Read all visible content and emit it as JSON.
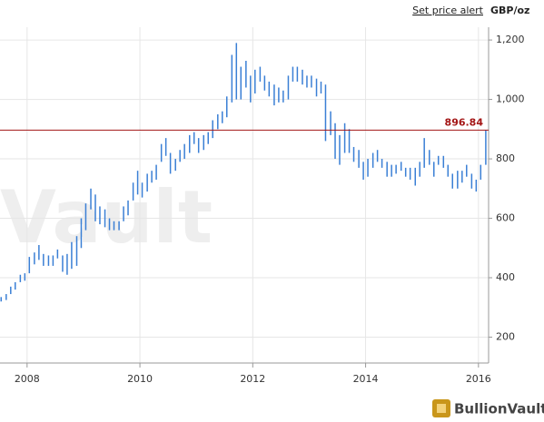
{
  "chart_data": {
    "type": "ohlc",
    "header": {
      "link": "Set price alert",
      "unit": "GBP/oz"
    },
    "watermark": "Vault",
    "logo": "BullionVault",
    "color": "#3a7fd5",
    "x": [
      2007.54,
      2007.63,
      2007.71,
      2007.79,
      2007.88,
      2007.96,
      2008.04,
      2008.13,
      2008.21,
      2008.29,
      2008.38,
      2008.46,
      2008.54,
      2008.63,
      2008.71,
      2008.79,
      2008.88,
      2008.96,
      2009.04,
      2009.13,
      2009.21,
      2009.29,
      2009.38,
      2009.46,
      2009.54,
      2009.63,
      2009.71,
      2009.79,
      2009.88,
      2009.96,
      2010.04,
      2010.13,
      2010.21,
      2010.29,
      2010.38,
      2010.46,
      2010.54,
      2010.63,
      2010.71,
      2010.79,
      2010.88,
      2010.96,
      2011.04,
      2011.13,
      2011.21,
      2011.29,
      2011.38,
      2011.46,
      2011.54,
      2011.63,
      2011.71,
      2011.79,
      2011.88,
      2011.96,
      2012.04,
      2012.13,
      2012.21,
      2012.29,
      2012.38,
      2012.46,
      2012.54,
      2012.63,
      2012.71,
      2012.79,
      2012.88,
      2012.96,
      2013.04,
      2013.13,
      2013.21,
      2013.29,
      2013.38,
      2013.46,
      2013.54,
      2013.63,
      2013.71,
      2013.79,
      2013.88,
      2013.96,
      2014.04,
      2014.13,
      2014.21,
      2014.29,
      2014.38,
      2014.46,
      2014.54,
      2014.63,
      2014.71,
      2014.79,
      2014.88,
      2014.96,
      2015.04,
      2015.13,
      2015.21,
      2015.29,
      2015.38,
      2015.46,
      2015.54,
      2015.63,
      2015.71,
      2015.79,
      2015.88,
      2015.96,
      2016.04,
      2016.13
    ],
    "high": [
      335,
      345,
      370,
      385,
      410,
      415,
      470,
      485,
      510,
      480,
      475,
      475,
      495,
      475,
      480,
      520,
      540,
      600,
      650,
      700,
      680,
      640,
      630,
      600,
      590,
      590,
      640,
      660,
      720,
      760,
      720,
      750,
      760,
      780,
      850,
      870,
      820,
      800,
      830,
      850,
      880,
      890,
      870,
      880,
      890,
      930,
      950,
      960,
      1010,
      1150,
      1190,
      1110,
      1130,
      1080,
      1100,
      1110,
      1080,
      1060,
      1050,
      1040,
      1030,
      1080,
      1110,
      1110,
      1100,
      1080,
      1080,
      1070,
      1060,
      1050,
      960,
      920,
      880,
      920,
      900,
      840,
      830,
      790,
      800,
      820,
      830,
      800,
      790,
      780,
      780,
      790,
      770,
      770,
      770,
      790,
      870,
      830,
      790,
      810,
      810,
      780,
      750,
      760,
      760,
      780,
      750,
      730,
      780,
      897
    ],
    "low": [
      320,
      325,
      345,
      360,
      385,
      390,
      415,
      445,
      460,
      440,
      440,
      440,
      465,
      420,
      410,
      430,
      440,
      500,
      560,
      630,
      590,
      580,
      570,
      560,
      560,
      560,
      590,
      610,
      660,
      680,
      670,
      690,
      720,
      730,
      790,
      810,
      750,
      760,
      790,
      800,
      820,
      850,
      820,
      830,
      850,
      870,
      900,
      920,
      940,
      990,
      1000,
      1000,
      1040,
      990,
      1020,
      1060,
      1030,
      1010,
      980,
      990,
      990,
      1000,
      1060,
      1060,
      1050,
      1040,
      1040,
      1010,
      1020,
      860,
      880,
      800,
      780,
      820,
      820,
      790,
      770,
      730,
      740,
      770,
      790,
      770,
      740,
      740,
      750,
      760,
      740,
      730,
      710,
      740,
      770,
      780,
      740,
      780,
      770,
      740,
      700,
      700,
      720,
      740,
      700,
      690,
      730,
      780
    ],
    "current": {
      "value": 896.84,
      "label": "896.84",
      "color": "#a31515"
    },
    "xlim": [
      2007.52,
      2016.18
    ],
    "xticks": [
      2008,
      2010,
      2012,
      2014,
      2016
    ],
    "ylim": [
      113,
      1243
    ],
    "yticks": [
      200,
      400,
      600,
      800,
      {
        "value": 1000,
        "label": "1,000"
      },
      {
        "value": 1200,
        "label": "1,200"
      }
    ],
    "grid": true
  }
}
